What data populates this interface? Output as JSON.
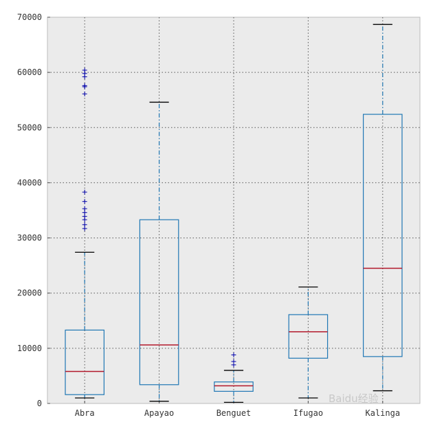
{
  "chart_data": {
    "type": "box",
    "title": "",
    "xlabel": "",
    "ylabel": "",
    "ylim": [
      0,
      70000
    ],
    "yticks": [
      0,
      10000,
      20000,
      30000,
      40000,
      50000,
      60000,
      70000
    ],
    "ytick_labels": [
      "0",
      "10000",
      "20000",
      "30000",
      "40000",
      "50000",
      "60000",
      "70000"
    ],
    "grid": true,
    "categories": [
      "Abra",
      "Apayao",
      "Benguet",
      "Ifugao",
      "Kalinga"
    ],
    "boxes": [
      {
        "category": "Abra",
        "whisker_low": 1000,
        "q1": 1600,
        "median": 5800,
        "q3": 13300,
        "whisker_high": 27400,
        "outliers": [
          31700,
          32400,
          33300,
          33900,
          34600,
          35300,
          36600,
          38300,
          56100,
          57400,
          57600,
          59200,
          59800,
          60400
        ]
      },
      {
        "category": "Apayao",
        "whisker_low": 400,
        "q1": 3400,
        "median": 10600,
        "q3": 33300,
        "whisker_high": 54600,
        "outliers": []
      },
      {
        "category": "Benguet",
        "whisker_low": 200,
        "q1": 2200,
        "median": 3200,
        "q3": 3900,
        "whisker_high": 6000,
        "outliers": [
          7000,
          7600,
          8800
        ]
      },
      {
        "category": "Ifugao",
        "whisker_low": 1000,
        "q1": 8200,
        "median": 13000,
        "q3": 16100,
        "whisker_high": 21100,
        "outliers": []
      },
      {
        "category": "Kalinga",
        "whisker_low": 2300,
        "q1": 8500,
        "median": 24500,
        "q3": 52400,
        "whisker_high": 68700,
        "outliers": []
      }
    ],
    "colors": {
      "background": "#ebebeb",
      "box": "#1f77b4",
      "median": "#b2182b",
      "whisker": "#1f77b4",
      "cap": "#000000",
      "outlier": "#0000aa",
      "grid": "#555555"
    }
  },
  "watermark": {
    "text": "Baidu经验"
  }
}
